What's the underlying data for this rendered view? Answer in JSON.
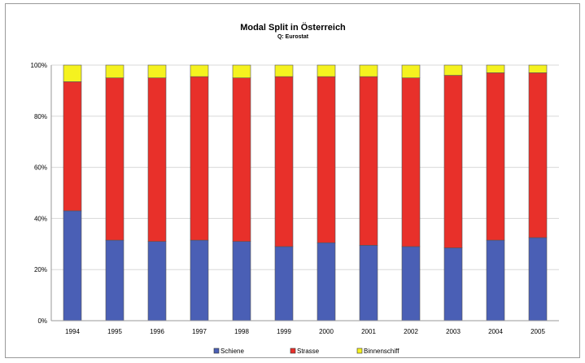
{
  "chart_data": {
    "type": "bar",
    "stacked": true,
    "normalized_percent": true,
    "title": "Modal Split in Österreich",
    "subtitle": "Q: Eurostat",
    "categories": [
      "1994",
      "1995",
      "1996",
      "1997",
      "1998",
      "1999",
      "2000",
      "2001",
      "2002",
      "2003",
      "2004",
      "2005"
    ],
    "series": [
      {
        "name": "Schiene",
        "color": "#4a5fb5",
        "values": [
          43,
          31.5,
          31,
          31.5,
          31,
          29,
          30.5,
          29.5,
          29,
          28.5,
          31.5,
          32.5
        ]
      },
      {
        "name": "Strasse",
        "color": "#e8302a",
        "values": [
          50.5,
          63.5,
          64,
          64,
          64,
          66.5,
          65,
          66,
          66,
          67.5,
          65.5,
          64.5
        ]
      },
      {
        "name": "Binnenschiff",
        "color": "#f5f21f",
        "values": [
          6.5,
          5,
          5,
          4.5,
          5,
          4.5,
          4.5,
          4.5,
          5,
          4,
          3,
          3
        ]
      }
    ],
    "ylim": [
      0,
      100
    ],
    "yticks": [
      "0%",
      "20%",
      "40%",
      "60%",
      "80%",
      "100%"
    ],
    "grid": true,
    "legend_position": "bottom"
  }
}
